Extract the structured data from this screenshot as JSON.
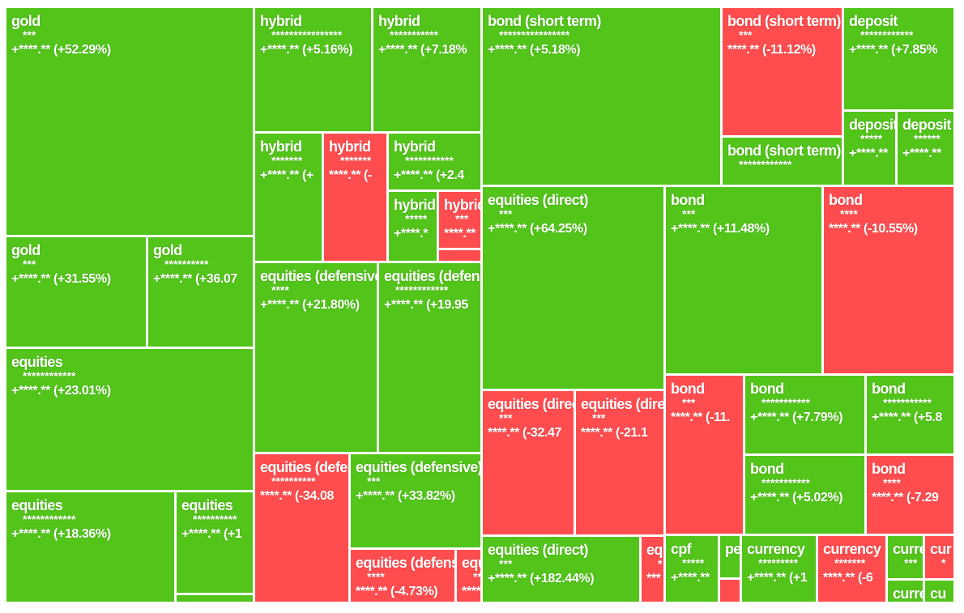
{
  "colors": {
    "gain": "#52c41a",
    "loss": "#ff4d4f"
  },
  "chart_data": {
    "type": "treemap",
    "tiles": [
      {
        "name": "gold",
        "mask": "***",
        "value": "+****.** (+52.29%)",
        "change_pct": 52.29
      },
      {
        "name": "gold",
        "mask": "***",
        "value": "+****.** (+31.55%)",
        "change_pct": 31.55
      },
      {
        "name": "gold",
        "mask": "**********",
        "value": "+****.** (+36.07",
        "change_pct": 36.07
      },
      {
        "name": "equities",
        "mask": "************",
        "value": "+****.** (+23.01%)",
        "change_pct": 23.01
      },
      {
        "name": "equities",
        "mask": "************",
        "value": "+****.** (+18.36%)",
        "change_pct": 18.36
      },
      {
        "name": "equities",
        "mask": "**********",
        "value": "+****.** (+1",
        "change_pct": null
      },
      {
        "name": "",
        "mask": "",
        "value": "",
        "change_pct": null
      },
      {
        "name": "hybrid",
        "mask": "****************",
        "value": "+****.** (+5.16%)",
        "change_pct": 5.16
      },
      {
        "name": "hybrid",
        "mask": "***********",
        "value": "+****.** (+7.18%",
        "change_pct": 7.18
      },
      {
        "name": "hybrid",
        "mask": "*******",
        "value": "+****.** (+",
        "change_pct": null
      },
      {
        "name": "hybrid",
        "mask": "*******",
        "value": "****.** (-",
        "change_pct": null
      },
      {
        "name": "hybrid",
        "mask": "***********",
        "value": "+****.** (+2.4",
        "change_pct": null
      },
      {
        "name": "hybrid",
        "mask": "*****",
        "value": "+****.*",
        "change_pct": null
      },
      {
        "name": "hybrid",
        "mask": "***",
        "value": "****.**",
        "change_pct": null
      },
      {
        "name": "",
        "mask": "",
        "value": "",
        "change_pct": null
      },
      {
        "name": "equities (defensive)",
        "mask": "****",
        "value": "+****.** (+21.80%)",
        "change_pct": 21.8
      },
      {
        "name": "equities (defensive)",
        "mask": "************",
        "value": "+****.** (+19.95",
        "change_pct": 19.95
      },
      {
        "name": "equities (defensive)",
        "mask": "**********",
        "value": "****.** (-34.08",
        "change_pct": -34.08
      },
      {
        "name": "equities (defensive)",
        "mask": "***",
        "value": "+****.** (+33.82%)",
        "change_pct": 33.82
      },
      {
        "name": "equities (defensive)",
        "mask": "****",
        "value": "****.** (-4.73%)",
        "change_pct": -4.73
      },
      {
        "name": "equities",
        "mask": "**",
        "value": "****.**",
        "change_pct": null
      },
      {
        "name": "bond (short term)",
        "mask": "****************",
        "value": "+****.** (+5.18%)",
        "change_pct": 5.18
      },
      {
        "name": "bond (short term)",
        "mask": "***",
        "value": "****.** (-11.12%)",
        "change_pct": -11.12
      },
      {
        "name": "bond (short term)",
        "mask": "************",
        "value": "",
        "change_pct": null
      },
      {
        "name": "deposit",
        "mask": "************",
        "value": "+****.** (+7.85%",
        "change_pct": 7.85
      },
      {
        "name": "deposit",
        "mask": "*****",
        "value": "+****.**",
        "change_pct": null
      },
      {
        "name": "deposit",
        "mask": "******",
        "value": "+****.**",
        "change_pct": null
      },
      {
        "name": "equities (direct)",
        "mask": "***",
        "value": "+****.** (+64.25%)",
        "change_pct": 64.25
      },
      {
        "name": "equities (direct)",
        "mask": "***",
        "value": "****.** (-32.47",
        "change_pct": -32.47
      },
      {
        "name": "equities (direct)",
        "mask": "***",
        "value": "****.** (-21.1",
        "change_pct": null
      },
      {
        "name": "equities (direct)",
        "mask": "***",
        "value": "+****.** (+182.44%)",
        "change_pct": 182.44
      },
      {
        "name": "eq",
        "mask": "*",
        "value": "***",
        "change_pct": null
      },
      {
        "name": "bond",
        "mask": "***",
        "value": "+****.** (+11.48%)",
        "change_pct": 11.48
      },
      {
        "name": "bond",
        "mask": "****",
        "value": "****.** (-10.55%)",
        "change_pct": -10.55
      },
      {
        "name": "bond",
        "mask": "***",
        "value": "****.** (-11.",
        "change_pct": null
      },
      {
        "name": "bond",
        "mask": "***********",
        "value": "+****.** (+7.79%)",
        "change_pct": 7.79
      },
      {
        "name": "bond",
        "mask": "***********",
        "value": "+****.** (+5.8",
        "change_pct": null
      },
      {
        "name": "bond",
        "mask": "***********",
        "value": "+****.** (+5.02%)",
        "change_pct": 5.02
      },
      {
        "name": "bond",
        "mask": "****",
        "value": "****.** (-7.29",
        "change_pct": -7.29
      },
      {
        "name": "cpf",
        "mask": "*****",
        "value": "+****.**",
        "change_pct": null
      },
      {
        "name": "pe",
        "mask": "",
        "value": "",
        "change_pct": null
      },
      {
        "name": "",
        "mask": "",
        "value": "",
        "change_pct": null
      },
      {
        "name": "currency",
        "mask": "*********",
        "value": "+****.** (+1",
        "change_pct": null
      },
      {
        "name": "currency",
        "mask": "*******",
        "value": "****.** (-6",
        "change_pct": null
      },
      {
        "name": "curre",
        "mask": "***",
        "value": "",
        "change_pct": null
      },
      {
        "name": "cur",
        "mask": "*",
        "value": "",
        "change_pct": null
      },
      {
        "name": "curre",
        "mask": "",
        "value": "",
        "change_pct": null
      },
      {
        "name": "cu",
        "mask": "",
        "value": "",
        "change_pct": null
      }
    ]
  }
}
